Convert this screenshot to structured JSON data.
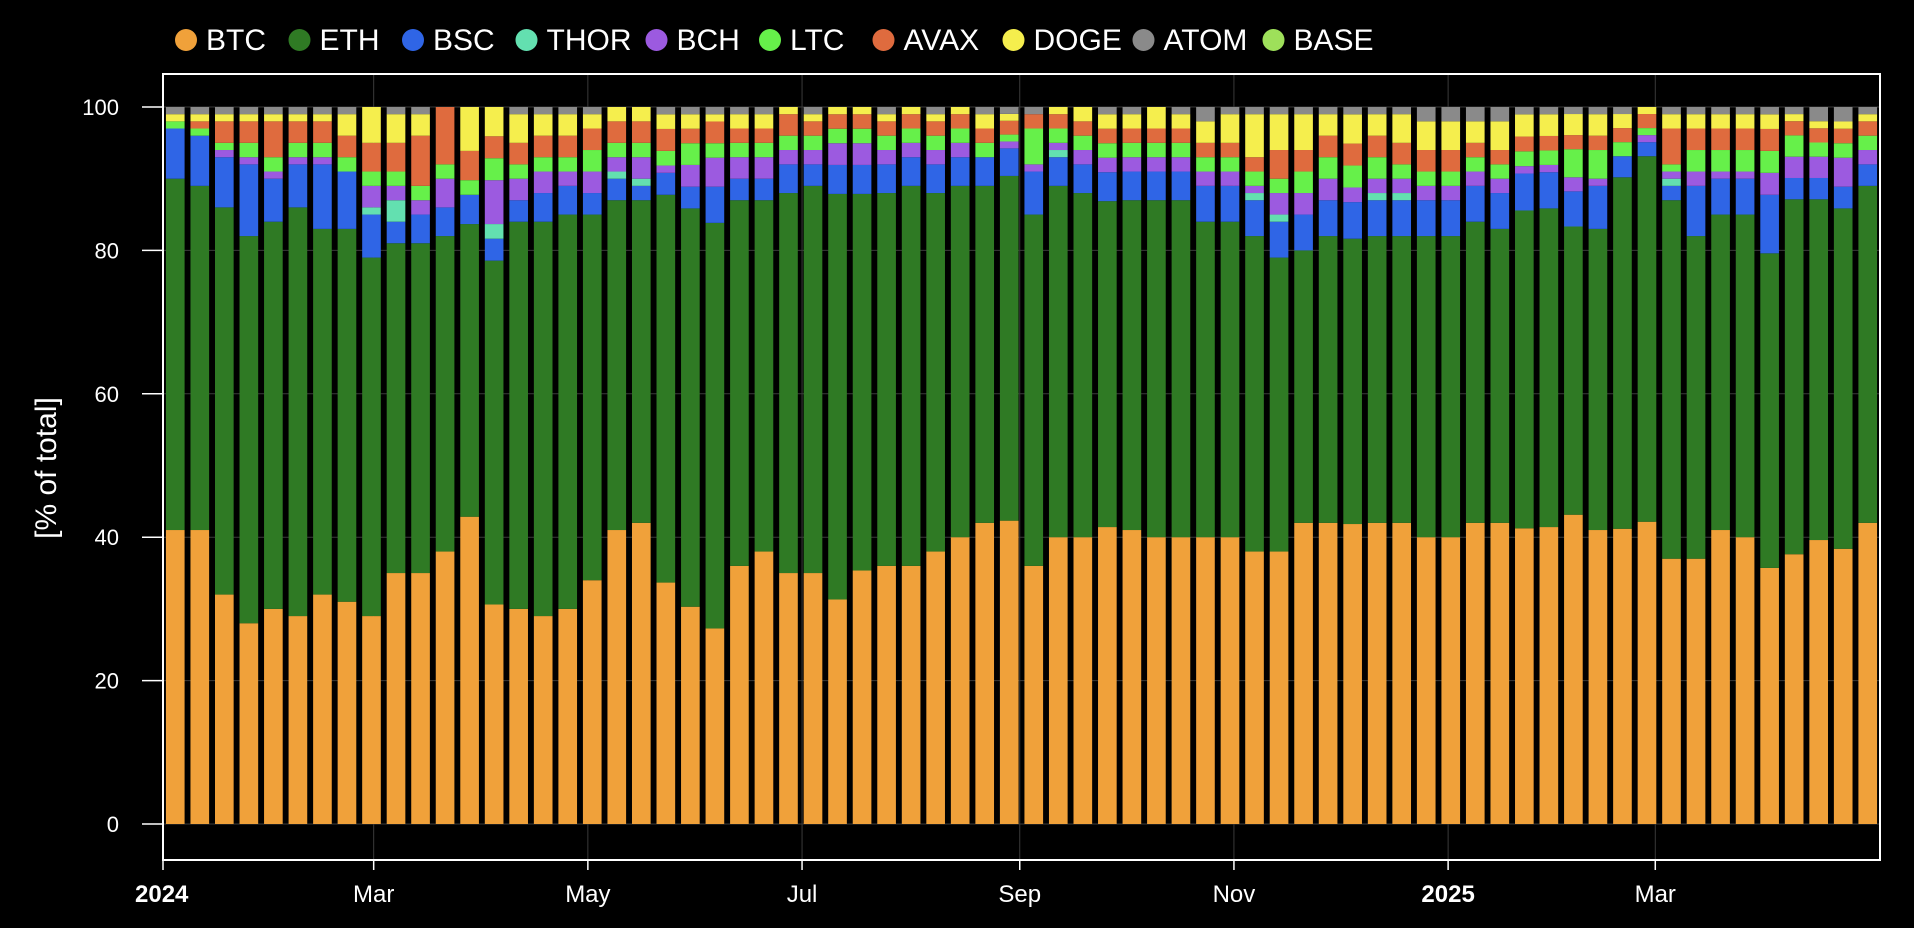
{
  "chart_data": {
    "type": "bar",
    "stacked": true,
    "ylabel": "[% of total]",
    "ylim": [
      0,
      100
    ],
    "yticks": [
      0,
      20,
      40,
      60,
      80,
      100
    ],
    "grid": true,
    "legend_position": "top",
    "x_range": [
      "2024-01-01",
      "2025-05-04"
    ],
    "x_ticks": [
      {
        "date": "2024-01-01",
        "label": "2024",
        "bold": true
      },
      {
        "date": "2024-03-01",
        "label": "Mar",
        "bold": false
      },
      {
        "date": "2024-05-01",
        "label": "May",
        "bold": false
      },
      {
        "date": "2024-07-01",
        "label": "Jul",
        "bold": false
      },
      {
        "date": "2024-09-01",
        "label": "Sep",
        "bold": false
      },
      {
        "date": "2024-11-01",
        "label": "Nov",
        "bold": false
      },
      {
        "date": "2025-01-01",
        "label": "2025",
        "bold": true
      },
      {
        "date": "2025-03-01",
        "label": "Mar",
        "bold": false
      }
    ],
    "categories": [
      "2024-01-01",
      "2024-01-08",
      "2024-01-15",
      "2024-01-22",
      "2024-01-29",
      "2024-02-05",
      "2024-02-12",
      "2024-02-19",
      "2024-02-26",
      "2024-03-04",
      "2024-03-11",
      "2024-03-18",
      "2024-03-25",
      "2024-04-01",
      "2024-04-08",
      "2024-04-15",
      "2024-04-22",
      "2024-04-29",
      "2024-05-06",
      "2024-05-13",
      "2024-05-20",
      "2024-05-27",
      "2024-06-03",
      "2024-06-10",
      "2024-06-17",
      "2024-06-24",
      "2024-07-01",
      "2024-07-08",
      "2024-07-15",
      "2024-07-22",
      "2024-07-29",
      "2024-08-05",
      "2024-08-12",
      "2024-08-19",
      "2024-08-26",
      "2024-09-02",
      "2024-09-09",
      "2024-09-16",
      "2024-09-23",
      "2024-09-30",
      "2024-10-07",
      "2024-10-14",
      "2024-10-21",
      "2024-10-28",
      "2024-11-04",
      "2024-11-11",
      "2024-11-18",
      "2024-11-25",
      "2024-12-02",
      "2024-12-09",
      "2024-12-16",
      "2024-12-23",
      "2024-12-30",
      "2025-01-06",
      "2025-01-13",
      "2025-01-20",
      "2025-01-27",
      "2025-02-03",
      "2025-02-10",
      "2025-02-17",
      "2025-02-24",
      "2025-03-03",
      "2025-03-10",
      "2025-03-17",
      "2025-03-24",
      "2025-03-31",
      "2025-04-07",
      "2025-04-14",
      "2025-04-21",
      "2025-04-28"
    ],
    "series": [
      {
        "name": "BTC",
        "color": "#f0a13a",
        "values": [
          41,
          41,
          32,
          28,
          30,
          29,
          32,
          31,
          29,
          35,
          35,
          38,
          42,
          30,
          30,
          29,
          30,
          34,
          41,
          42,
          33,
          30,
          27,
          36,
          38,
          35,
          35,
          31,
          35,
          36,
          36,
          38,
          40,
          42,
          44,
          36,
          40,
          40,
          41,
          41,
          40,
          40,
          40,
          40,
          38,
          38,
          42,
          42,
          41,
          42,
          42,
          40,
          40,
          42,
          42,
          40,
          41,
          44,
          41,
          42,
          43,
          37,
          37,
          41,
          40,
          35,
          38,
          40,
          38,
          42
        ]
      },
      {
        "name": "ETH",
        "color": "#2f7a24",
        "values": [
          49,
          48,
          54,
          54,
          54,
          57,
          51,
          52,
          50,
          46,
          46,
          44,
          40,
          47,
          54,
          55,
          55,
          51,
          46,
          45,
          53,
          55,
          56,
          51,
          49,
          53,
          54,
          56,
          52,
          52,
          53,
          50,
          49,
          47,
          50,
          49,
          49,
          48,
          45,
          46,
          47,
          47,
          44,
          44,
          44,
          41,
          38,
          40,
          39,
          40,
          40,
          42,
          42,
          42,
          41,
          43,
          44,
          41,
          42,
          50,
          52,
          50,
          45,
          44,
          45,
          43,
          50,
          48,
          47,
          47
        ]
      },
      {
        "name": "BSC",
        "color": "#2f65e6",
        "values": [
          7,
          7,
          7,
          10,
          6,
          6,
          9,
          8,
          6,
          3,
          4,
          4,
          4,
          3,
          3,
          4,
          4,
          3,
          3,
          2,
          3,
          3,
          5,
          3,
          3,
          4,
          3,
          4,
          4,
          4,
          4,
          4,
          4,
          4,
          4,
          6,
          4,
          4,
          4,
          4,
          4,
          4,
          5,
          5,
          5,
          5,
          5,
          5,
          5,
          5,
          5,
          5,
          5,
          5,
          5,
          5,
          5,
          5,
          6,
          3,
          2,
          2,
          7,
          5,
          5,
          8,
          3,
          3,
          3,
          3
        ]
      },
      {
        "name": "THOR",
        "color": "#63e0b0",
        "values": [
          0,
          0,
          0,
          0,
          0,
          0,
          0,
          0,
          1,
          3,
          0,
          0,
          0,
          2,
          0,
          0,
          0,
          0,
          1,
          1,
          0,
          0,
          0,
          0,
          0,
          0,
          0,
          0,
          0,
          0,
          0,
          0,
          0,
          0,
          0,
          0,
          1,
          0,
          0,
          0,
          0,
          0,
          0,
          0,
          1,
          1,
          0,
          0,
          0,
          1,
          1,
          0,
          0,
          0,
          0,
          0,
          0,
          0,
          0,
          0,
          0,
          1,
          0,
          0,
          0,
          0,
          0,
          0,
          0,
          0
        ]
      },
      {
        "name": "BCH",
        "color": "#9c5ae0",
        "values": [
          0,
          0,
          1,
          1,
          1,
          1,
          1,
          0,
          3,
          2,
          2,
          4,
          0,
          6,
          3,
          3,
          2,
          3,
          2,
          3,
          1,
          3,
          4,
          3,
          3,
          2,
          2,
          3,
          3,
          2,
          2,
          2,
          2,
          0,
          1,
          1,
          1,
          2,
          2,
          2,
          2,
          2,
          2,
          2,
          1,
          3,
          3,
          3,
          2,
          2,
          2,
          2,
          2,
          2,
          2,
          1,
          1,
          2,
          1,
          0,
          1,
          1,
          2,
          1,
          1,
          3,
          3,
          3,
          4,
          2
        ]
      },
      {
        "name": "LTC",
        "color": "#66f04a",
        "values": [
          1,
          1,
          1,
          2,
          2,
          2,
          2,
          2,
          2,
          2,
          2,
          2,
          2,
          3,
          2,
          2,
          2,
          3,
          2,
          2,
          2,
          3,
          2,
          2,
          2,
          2,
          2,
          2,
          2,
          2,
          2,
          2,
          2,
          2,
          1,
          5,
          2,
          2,
          2,
          2,
          2,
          2,
          2,
          2,
          2,
          2,
          3,
          3,
          3,
          3,
          2,
          2,
          2,
          2,
          2,
          2,
          2,
          4,
          4,
          2,
          1,
          1,
          3,
          3,
          3,
          3,
          3,
          2,
          2,
          2
        ]
      },
      {
        "name": "AVAX",
        "color": "#df6b3e",
        "values": [
          0,
          1,
          3,
          3,
          5,
          3,
          3,
          3,
          4,
          4,
          7,
          8,
          4,
          3,
          3,
          3,
          3,
          3,
          3,
          3,
          3,
          2,
          3,
          2,
          2,
          3,
          2,
          2,
          2,
          2,
          2,
          2,
          2,
          2,
          2,
          2,
          2,
          2,
          2,
          2,
          2,
          2,
          2,
          2,
          2,
          4,
          3,
          3,
          3,
          3,
          3,
          3,
          3,
          2,
          2,
          2,
          2,
          2,
          2,
          2,
          2,
          5,
          3,
          3,
          3,
          3,
          2,
          2,
          2,
          2
        ]
      },
      {
        "name": "DOGE",
        "color": "#f5ee4d",
        "values": [
          1,
          1,
          1,
          1,
          1,
          1,
          1,
          3,
          5,
          4,
          3,
          0,
          6,
          4,
          4,
          3,
          3,
          2,
          2,
          2,
          2,
          2,
          1,
          2,
          2,
          1,
          1,
          1,
          1,
          1,
          1,
          1,
          1,
          2,
          1,
          0,
          1,
          2,
          2,
          2,
          3,
          2,
          3,
          4,
          6,
          5,
          5,
          3,
          4,
          3,
          4,
          4,
          4,
          3,
          4,
          3,
          3,
          3,
          3,
          2,
          1,
          2,
          2,
          2,
          2,
          2,
          1,
          1,
          1,
          1
        ]
      },
      {
        "name": "ATOM",
        "color": "#8a8a8a",
        "values": [
          1,
          1,
          1,
          1,
          1,
          1,
          1,
          1,
          0,
          1,
          1,
          0,
          0,
          0,
          1,
          1,
          1,
          1,
          0,
          0,
          1,
          1,
          1,
          1,
          1,
          0,
          1,
          0,
          0,
          1,
          0,
          1,
          0,
          1,
          1,
          1,
          0,
          0,
          1,
          1,
          0,
          1,
          2,
          1,
          1,
          1,
          1,
          1,
          1,
          1,
          1,
          2,
          2,
          2,
          2,
          1,
          1,
          1,
          1,
          1,
          0,
          1,
          1,
          1,
          1,
          1,
          1,
          2,
          2,
          1
        ]
      },
      {
        "name": "BASE",
        "color": "#9ee05a",
        "values": [
          0,
          0,
          0,
          0,
          0,
          0,
          0,
          0,
          0,
          0,
          0,
          0,
          0,
          0,
          0,
          0,
          0,
          0,
          0,
          0,
          0,
          0,
          0,
          0,
          0,
          0,
          0,
          0,
          0,
          0,
          0,
          0,
          0,
          0,
          0,
          0,
          0,
          0,
          0,
          0,
          0,
          0,
          0,
          0,
          0,
          0,
          0,
          0,
          0,
          0,
          0,
          0,
          0,
          0,
          0,
          0,
          0,
          0,
          0,
          0,
          0,
          0,
          0,
          0,
          0,
          0,
          0,
          0,
          0,
          0
        ]
      }
    ]
  }
}
